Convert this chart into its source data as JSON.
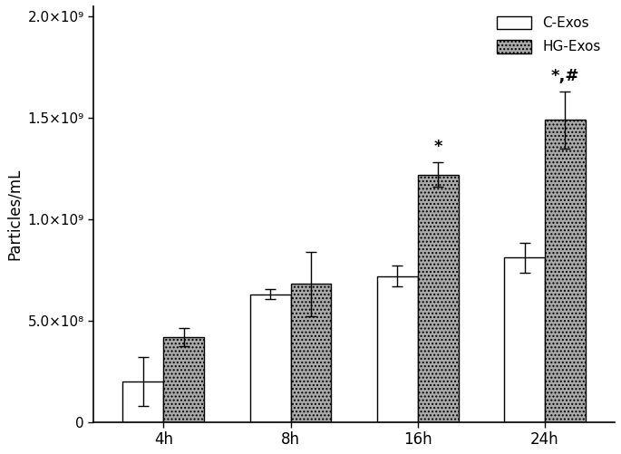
{
  "categories": [
    "4h",
    "8h",
    "16h",
    "24h"
  ],
  "c_exos_values": [
    200000000.0,
    630000000.0,
    720000000.0,
    810000000.0
  ],
  "hg_exos_values": [
    420000000.0,
    680000000.0,
    1220000000.0,
    1490000000.0
  ],
  "c_exos_errors": [
    120000000.0,
    25000000.0,
    50000000.0,
    75000000.0
  ],
  "hg_exos_errors": [
    45000000.0,
    160000000.0,
    60000000.0,
    140000000.0
  ],
  "ylabel": "Particles/mL",
  "ylim": [
    0,
    2050000000.0
  ],
  "yticks": [
    0,
    500000000.0,
    1000000000.0,
    1500000000.0,
    2000000000.0
  ],
  "bar_width": 0.32,
  "c_exos_color": "#ffffff",
  "hg_exos_color": "#aaaaaa",
  "edge_color": "#000000",
  "legend_labels": [
    "C-Exos",
    "HG-Exos"
  ],
  "annotations_16h": "*",
  "annotations_24h": "*,#",
  "annotation_fontsize": 13
}
